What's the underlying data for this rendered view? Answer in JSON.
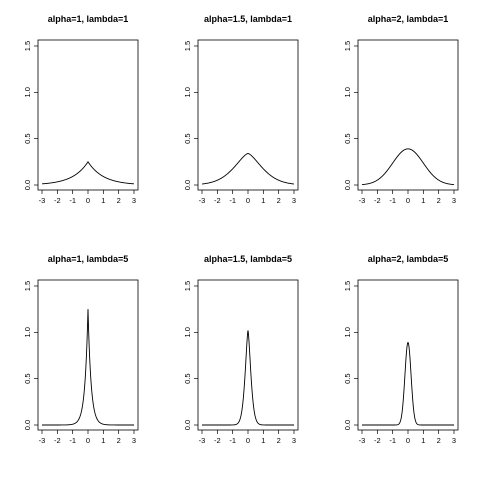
{
  "chart_data": [
    {
      "type": "line",
      "title": "alpha=1, lambda=1",
      "alpha": 1,
      "lambda": 1,
      "xlim": [
        -3,
        3
      ],
      "ylim": [
        0,
        1.5
      ],
      "xticks": [
        -3,
        -2,
        -1,
        0,
        1,
        2,
        3
      ],
      "yticks": [
        0.0,
        0.5,
        1.0,
        1.5
      ],
      "ytick_labels": [
        "0.0",
        "0.5",
        "1.0",
        "1.5"
      ],
      "peak_value": 0.25
    },
    {
      "type": "line",
      "title": "alpha=1.5, lambda=1",
      "alpha": 1.5,
      "lambda": 1,
      "xlim": [
        -3,
        3
      ],
      "ylim": [
        0,
        1.5
      ],
      "xticks": [
        -3,
        -2,
        -1,
        0,
        1,
        2,
        3
      ],
      "yticks": [
        0.0,
        0.5,
        1.0,
        1.5
      ],
      "ytick_labels": [
        "0.0",
        "0.5",
        "1.0",
        "1.5"
      ],
      "peak_value": 0.34
    },
    {
      "type": "line",
      "title": "alpha=2, lambda=1",
      "alpha": 2,
      "lambda": 1,
      "xlim": [
        -3,
        3
      ],
      "ylim": [
        0,
        1.5
      ],
      "xticks": [
        -3,
        -2,
        -1,
        0,
        1,
        2,
        3
      ],
      "yticks": [
        0.0,
        0.5,
        1.0,
        1.5
      ],
      "ytick_labels": [
        "0.0",
        "0.5",
        "1.0",
        "1.5"
      ],
      "peak_value": 0.39
    },
    {
      "type": "line",
      "title": "alpha=1, lambda=5",
      "alpha": 1,
      "lambda": 5,
      "xlim": [
        -3,
        3
      ],
      "ylim": [
        0,
        1.5
      ],
      "xticks": [
        -3,
        -2,
        -1,
        0,
        1,
        2,
        3
      ],
      "yticks": [
        0.0,
        0.5,
        1.0,
        1.5
      ],
      "ytick_labels": [
        "0.0",
        "0.5",
        "1.0",
        "1.5"
      ],
      "peak_value": 1.25
    },
    {
      "type": "line",
      "title": "alpha=1.5, lambda=5",
      "alpha": 1.5,
      "lambda": 5,
      "xlim": [
        -3,
        3
      ],
      "ylim": [
        0,
        1.5
      ],
      "xticks": [
        -3,
        -2,
        -1,
        0,
        1,
        2,
        3
      ],
      "yticks": [
        0.0,
        0.5,
        1.0,
        1.5
      ],
      "ytick_labels": [
        "0.0",
        "0.5",
        "1.0",
        "1.5"
      ],
      "peak_value": 1.02
    },
    {
      "type": "line",
      "title": "alpha=2, lambda=5",
      "alpha": 2,
      "lambda": 5,
      "xlim": [
        -3,
        3
      ],
      "ylim": [
        0,
        1.5
      ],
      "xticks": [
        -3,
        -2,
        -1,
        0,
        1,
        2,
        3
      ],
      "yticks": [
        0.0,
        0.5,
        1.0,
        1.5
      ],
      "ytick_labels": [
        "0.0",
        "0.5",
        "1.0",
        "1.5"
      ],
      "peak_value": 0.89
    }
  ]
}
